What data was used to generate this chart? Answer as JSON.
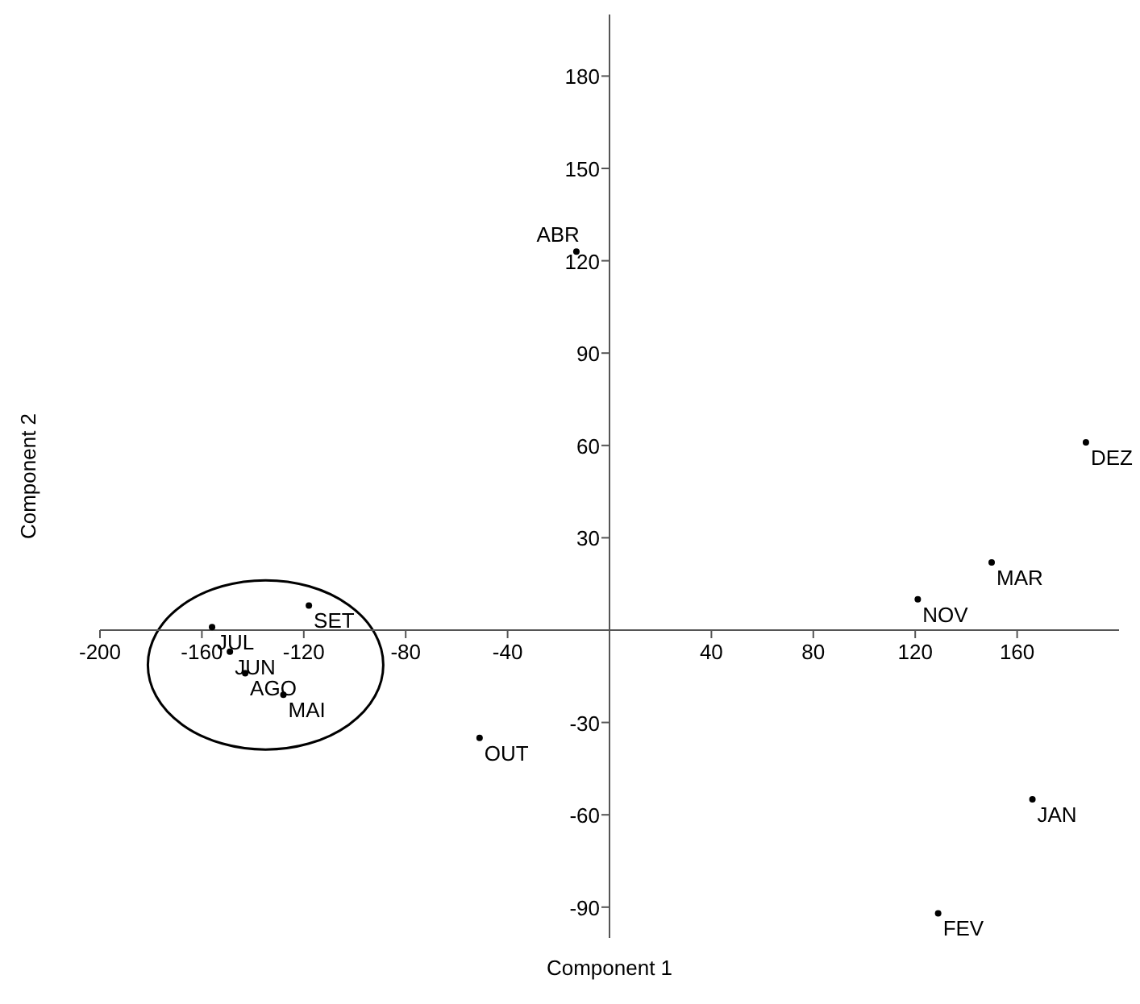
{
  "chart_data": {
    "type": "scatter",
    "xlabel": "Component 1",
    "ylabel": "Component 2",
    "xlim": [
      -200,
      200
    ],
    "ylim": [
      -100,
      200
    ],
    "xticks": [
      -200,
      -160,
      -120,
      -80,
      -40,
      40,
      80,
      120,
      160
    ],
    "yticks": [
      -90,
      -60,
      -30,
      30,
      60,
      90,
      120,
      150,
      180
    ],
    "marker": "circle",
    "grid": false,
    "series": [
      {
        "name": "JAN",
        "color": "#000000",
        "x": [
          166
        ],
        "values": [
          -55
        ]
      },
      {
        "name": "FEV",
        "color": "#000000",
        "x": [
          129
        ],
        "values": [
          -92
        ]
      },
      {
        "name": "MAR",
        "color": "#000000",
        "x": [
          150
        ],
        "values": [
          22
        ]
      },
      {
        "name": "ABR",
        "color": "#000000",
        "x": [
          -13
        ],
        "values": [
          123
        ]
      },
      {
        "name": "MAI",
        "color": "#000000",
        "x": [
          -128
        ],
        "values": [
          -21
        ]
      },
      {
        "name": "JUN",
        "color": "#000000",
        "x": [
          -149
        ],
        "values": [
          -7
        ]
      },
      {
        "name": "JUL",
        "color": "#000000",
        "x": [
          -156
        ],
        "values": [
          1
        ]
      },
      {
        "name": "AGO",
        "color": "#000000",
        "x": [
          -143
        ],
        "values": [
          -14
        ]
      },
      {
        "name": "SET",
        "color": "#000000",
        "x": [
          -118
        ],
        "values": [
          8
        ]
      },
      {
        "name": "OUT",
        "color": "#000000",
        "x": [
          -51
        ],
        "values": [
          -35
        ]
      },
      {
        "name": "NOV",
        "color": "#000000",
        "x": [
          121
        ],
        "values": [
          10
        ]
      },
      {
        "name": "DEZ",
        "color": "#000000",
        "x": [
          187
        ],
        "values": [
          61
        ]
      }
    ]
  }
}
